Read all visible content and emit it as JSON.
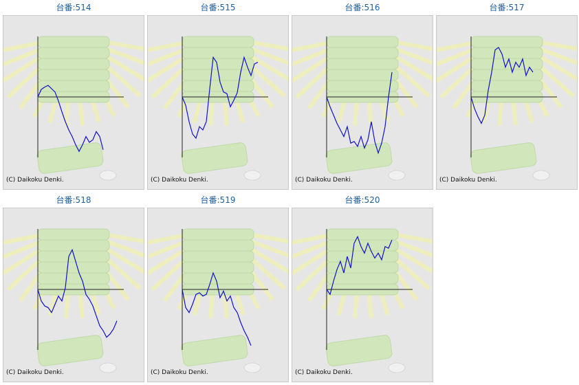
{
  "colors": {
    "title": "#1f5fa0",
    "line": "#1010d0",
    "axis": "#222222",
    "panel_bg": "#e6e6e6",
    "panel_border": "#c8c8c8",
    "watermark_green": "#cfe6b6",
    "watermark_rays": "#efefb8"
  },
  "cards": [
    {
      "title": "台番:514",
      "copyright": "(C) Daikoku Denki."
    },
    {
      "title": "台番:515",
      "copyright": "(C) Daikoku Denki."
    },
    {
      "title": "台番:516",
      "copyright": "(C) Daikoku Denki."
    },
    {
      "title": "台番:517",
      "copyright": "(C) Daikoku Denki."
    },
    {
      "title": "台番:518",
      "copyright": "(C) Daikoku Denki."
    },
    {
      "title": "台番:519",
      "copyright": "(C) Daikoku Denki."
    },
    {
      "title": "台番:520",
      "copyright": "(C) Daikoku Denki."
    }
  ],
  "chart_data": [
    {
      "type": "line",
      "title": "台番:514",
      "x": [
        0,
        5,
        10,
        15,
        20,
        25,
        30,
        35,
        40,
        45,
        50,
        55,
        60,
        65,
        70,
        75,
        80,
        85,
        90,
        95
      ],
      "values": [
        0,
        9,
        12,
        14,
        10,
        6,
        -5,
        -18,
        -30,
        -40,
        -48,
        -58,
        -66,
        -58,
        -48,
        -55,
        -52,
        -42,
        -48,
        -64
      ]
    },
    {
      "type": "line",
      "title": "台番:515",
      "x": [
        0,
        5,
        10,
        15,
        20,
        25,
        30,
        35,
        40,
        45,
        50,
        55,
        60,
        65,
        70,
        75,
        80,
        85,
        90,
        95,
        100,
        105,
        110
      ],
      "values": [
        0,
        -10,
        -30,
        -45,
        -50,
        -36,
        -40,
        -30,
        10,
        48,
        42,
        18,
        6,
        4,
        -12,
        -4,
        5,
        30,
        48,
        36,
        26,
        40,
        42
      ]
    },
    {
      "type": "line",
      "title": "台番:516",
      "x": [
        0,
        5,
        10,
        15,
        20,
        25,
        30,
        35,
        40,
        45,
        50,
        55,
        60,
        65,
        70,
        75,
        80,
        85,
        90,
        95
      ],
      "values": [
        0,
        -12,
        -22,
        -32,
        -40,
        -48,
        -36,
        -56,
        -54,
        -60,
        -48,
        -62,
        -52,
        -30,
        -54,
        -68,
        -56,
        -36,
        0,
        30
      ]
    },
    {
      "type": "line",
      "title": "台番:517",
      "x": [
        0,
        5,
        10,
        15,
        20,
        25,
        30,
        35,
        40,
        45,
        50,
        55,
        60,
        65,
        70,
        75,
        80,
        85,
        90
      ],
      "values": [
        0,
        -14,
        -24,
        -32,
        -22,
        8,
        30,
        57,
        60,
        52,
        36,
        46,
        30,
        42,
        36,
        46,
        26,
        36,
        30
      ]
    },
    {
      "type": "line",
      "title": "台番:518",
      "x": [
        0,
        5,
        10,
        15,
        20,
        25,
        30,
        35,
        40,
        45,
        50,
        55,
        60,
        65,
        70,
        75,
        80,
        85,
        90,
        95,
        100,
        105,
        110,
        115
      ],
      "values": [
        0,
        -14,
        -20,
        -22,
        -28,
        -18,
        -8,
        -14,
        2,
        40,
        48,
        34,
        20,
        10,
        -6,
        -12,
        -20,
        -32,
        -44,
        -50,
        -58,
        -54,
        -48,
        -38
      ]
    },
    {
      "type": "line",
      "title": "台番:519",
      "x": [
        0,
        5,
        10,
        15,
        20,
        25,
        30,
        35,
        40,
        45,
        50,
        55,
        60,
        65,
        70,
        75,
        80,
        85,
        90,
        95,
        100
      ],
      "values": [
        0,
        -22,
        -28,
        -18,
        -6,
        -4,
        -8,
        -6,
        6,
        20,
        10,
        -10,
        -2,
        -14,
        -8,
        -22,
        -28,
        -40,
        -50,
        -58,
        -68
      ]
    },
    {
      "type": "line",
      "title": "台番:520",
      "x": [
        0,
        5,
        10,
        15,
        20,
        25,
        30,
        35,
        40,
        45,
        50,
        55,
        60,
        65,
        70,
        75,
        80,
        85,
        90,
        95
      ],
      "values": [
        0,
        -6,
        10,
        24,
        34,
        20,
        40,
        26,
        56,
        64,
        52,
        44,
        56,
        46,
        38,
        44,
        36,
        52,
        50,
        60
      ]
    }
  ]
}
